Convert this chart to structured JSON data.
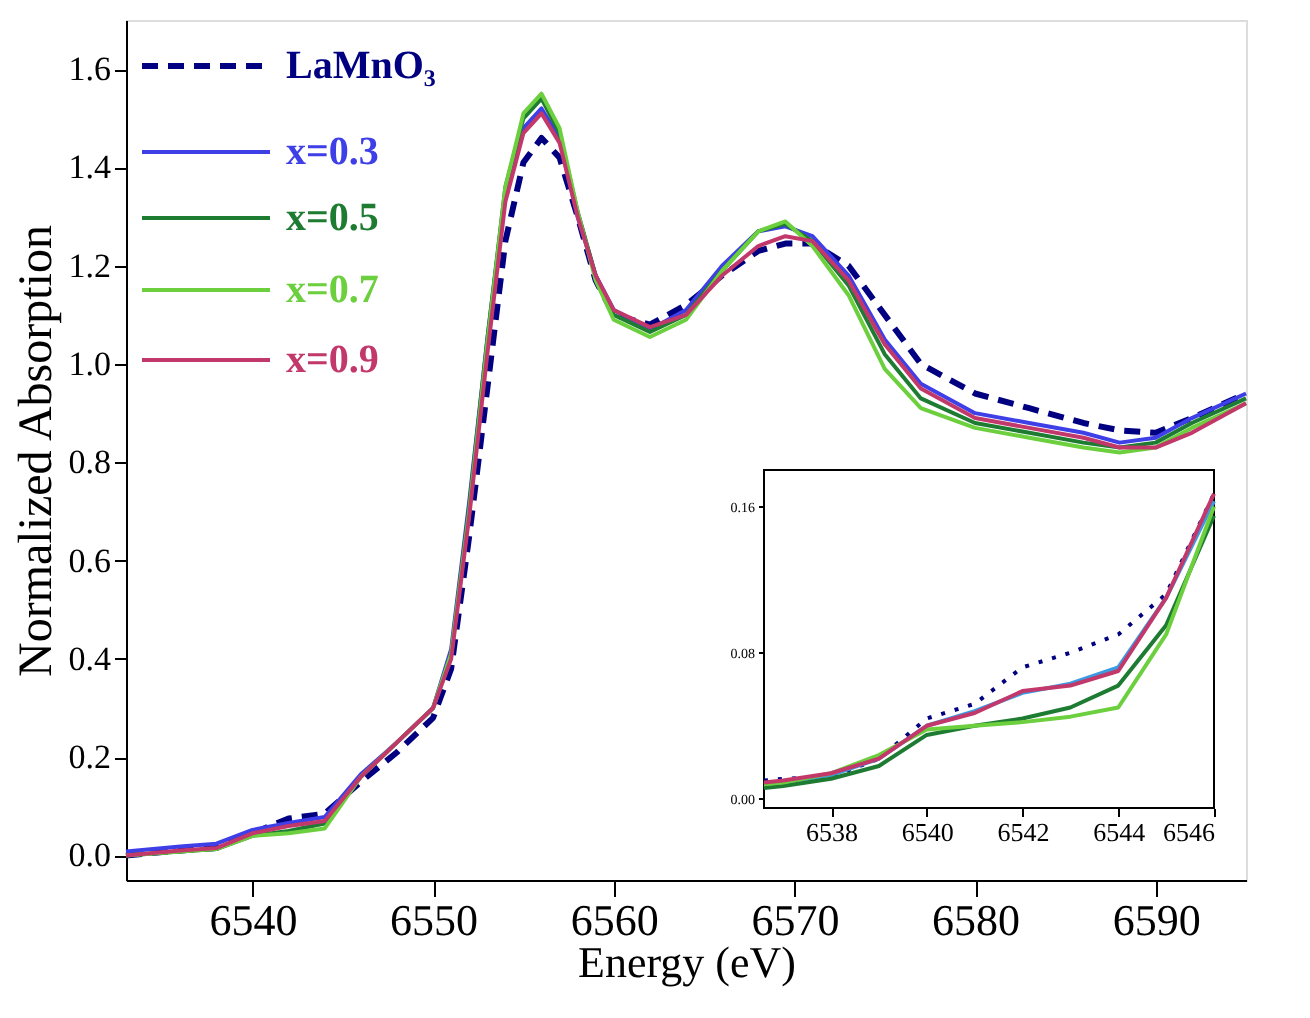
{
  "chart_data": [
    {
      "type": "line",
      "xlabel": "Energy (eV)",
      "ylabel": "Normalized Absorption",
      "xlim": [
        6533,
        6595
      ],
      "ylim": [
        -0.05,
        1.7
      ],
      "xticks": [
        6540,
        6550,
        6560,
        6570,
        6580,
        6590
      ],
      "yticks": [
        {
          "value": 0,
          "label": "0.0"
        },
        0.2,
        0.4,
        0.6,
        0.8,
        {
          "value": 1,
          "label": "1.0"
        },
        1.2,
        1.4,
        1.6
      ],
      "grid": false,
      "legend": "top left",
      "x": [
        6533,
        6536,
        6538,
        6540,
        6542,
        6544,
        6546,
        6548,
        6550,
        6551,
        6552,
        6553,
        6554,
        6555,
        6556,
        6557,
        6558,
        6559,
        6560,
        6562,
        6564,
        6566,
        6568,
        6569.5,
        6571,
        6573,
        6575,
        6577,
        6580,
        6583,
        6586,
        6588,
        6590,
        6592,
        6595
      ],
      "series": [
        {
          "name": "LaMnO₃",
          "color": "#000080",
          "line_style": "dashed",
          "values": [
            0.0,
            0.01,
            0.015,
            0.045,
            0.075,
            0.085,
            0.15,
            0.21,
            0.28,
            0.38,
            0.65,
            0.95,
            1.25,
            1.41,
            1.46,
            1.42,
            1.3,
            1.17,
            1.1,
            1.08,
            1.12,
            1.18,
            1.23,
            1.245,
            1.245,
            1.2,
            1.1,
            1.0,
            0.94,
            0.91,
            0.88,
            0.865,
            0.86,
            0.89,
            0.94
          ]
        },
        {
          "name": "x=0.3",
          "color": "#3f3fe8",
          "line_style": "solid",
          "values": [
            0.008,
            0.018,
            0.024,
            0.052,
            0.066,
            0.078,
            0.165,
            0.23,
            0.3,
            0.42,
            0.72,
            1.05,
            1.35,
            1.48,
            1.52,
            1.46,
            1.3,
            1.18,
            1.11,
            1.07,
            1.11,
            1.2,
            1.27,
            1.28,
            1.26,
            1.18,
            1.05,
            0.96,
            0.9,
            0.88,
            0.86,
            0.84,
            0.85,
            0.89,
            0.94
          ]
        },
        {
          "name": "x=0.5",
          "color": "#1e7b32",
          "line_style": "solid",
          "values": [
            0.0,
            0.008,
            0.013,
            0.04,
            0.05,
            0.065,
            0.16,
            0.23,
            0.3,
            0.41,
            0.71,
            1.05,
            1.36,
            1.5,
            1.54,
            1.47,
            1.31,
            1.18,
            1.1,
            1.065,
            1.1,
            1.19,
            1.27,
            1.285,
            1.25,
            1.16,
            1.02,
            0.93,
            0.88,
            0.86,
            0.84,
            0.83,
            0.84,
            0.88,
            0.93
          ]
        },
        {
          "name": "x=0.7",
          "color": "#6ccf3e",
          "line_style": "solid",
          "values": [
            0.0,
            0.008,
            0.013,
            0.04,
            0.045,
            0.055,
            0.16,
            0.23,
            0.3,
            0.41,
            0.7,
            1.04,
            1.36,
            1.51,
            1.55,
            1.48,
            1.31,
            1.17,
            1.09,
            1.055,
            1.09,
            1.19,
            1.27,
            1.29,
            1.24,
            1.14,
            0.99,
            0.91,
            0.87,
            0.85,
            0.83,
            0.82,
            0.83,
            0.87,
            0.92
          ]
        },
        {
          "name": "x=0.9",
          "color": "#c2386a",
          "line_style": "solid",
          "values": [
            0.0,
            0.01,
            0.015,
            0.045,
            0.06,
            0.07,
            0.16,
            0.23,
            0.3,
            0.4,
            0.69,
            1.02,
            1.33,
            1.47,
            1.51,
            1.45,
            1.3,
            1.18,
            1.11,
            1.075,
            1.1,
            1.18,
            1.24,
            1.26,
            1.25,
            1.17,
            1.04,
            0.95,
            0.89,
            0.87,
            0.85,
            0.83,
            0.83,
            0.86,
            0.92
          ]
        }
      ]
    },
    {
      "type": "line",
      "xlim": [
        6536.6,
        6546
      ],
      "ylim": [
        -0.005,
        0.18
      ],
      "xticks": [
        6538,
        6540,
        6542,
        6544,
        6546
      ],
      "yticks": [
        {
          "value": 0,
          "label": "0.00"
        },
        {
          "value": 0.08,
          "label": "0.08"
        },
        {
          "value": 0.16,
          "label": "0.16"
        }
      ],
      "grid": false,
      "x": [
        6536.6,
        6537,
        6538,
        6539,
        6540,
        6541,
        6542,
        6543,
        6544,
        6545,
        6546
      ],
      "series": [
        {
          "color": "#000080",
          "line_style": "dotted",
          "values": [
            0.01,
            0.011,
            0.012,
            0.022,
            0.044,
            0.052,
            0.072,
            0.08,
            0.09,
            0.112,
            0.167
          ]
        },
        {
          "color": "#3a9be0",
          "line_style": "solid",
          "values": [
            0.008,
            0.009,
            0.013,
            0.022,
            0.04,
            0.048,
            0.058,
            0.063,
            0.072,
            0.11,
            0.163
          ]
        },
        {
          "color": "#1e7b32",
          "line_style": "solid",
          "values": [
            0.006,
            0.007,
            0.011,
            0.018,
            0.035,
            0.04,
            0.044,
            0.05,
            0.062,
            0.095,
            0.155
          ]
        },
        {
          "color": "#6ccf3e",
          "line_style": "solid",
          "values": [
            0.008,
            0.009,
            0.014,
            0.024,
            0.038,
            0.04,
            0.042,
            0.045,
            0.05,
            0.09,
            0.16
          ]
        },
        {
          "color": "#c2386a",
          "line_style": "solid",
          "values": [
            0.009,
            0.01,
            0.014,
            0.022,
            0.04,
            0.047,
            0.059,
            0.062,
            0.07,
            0.11,
            0.167
          ]
        }
      ]
    }
  ]
}
